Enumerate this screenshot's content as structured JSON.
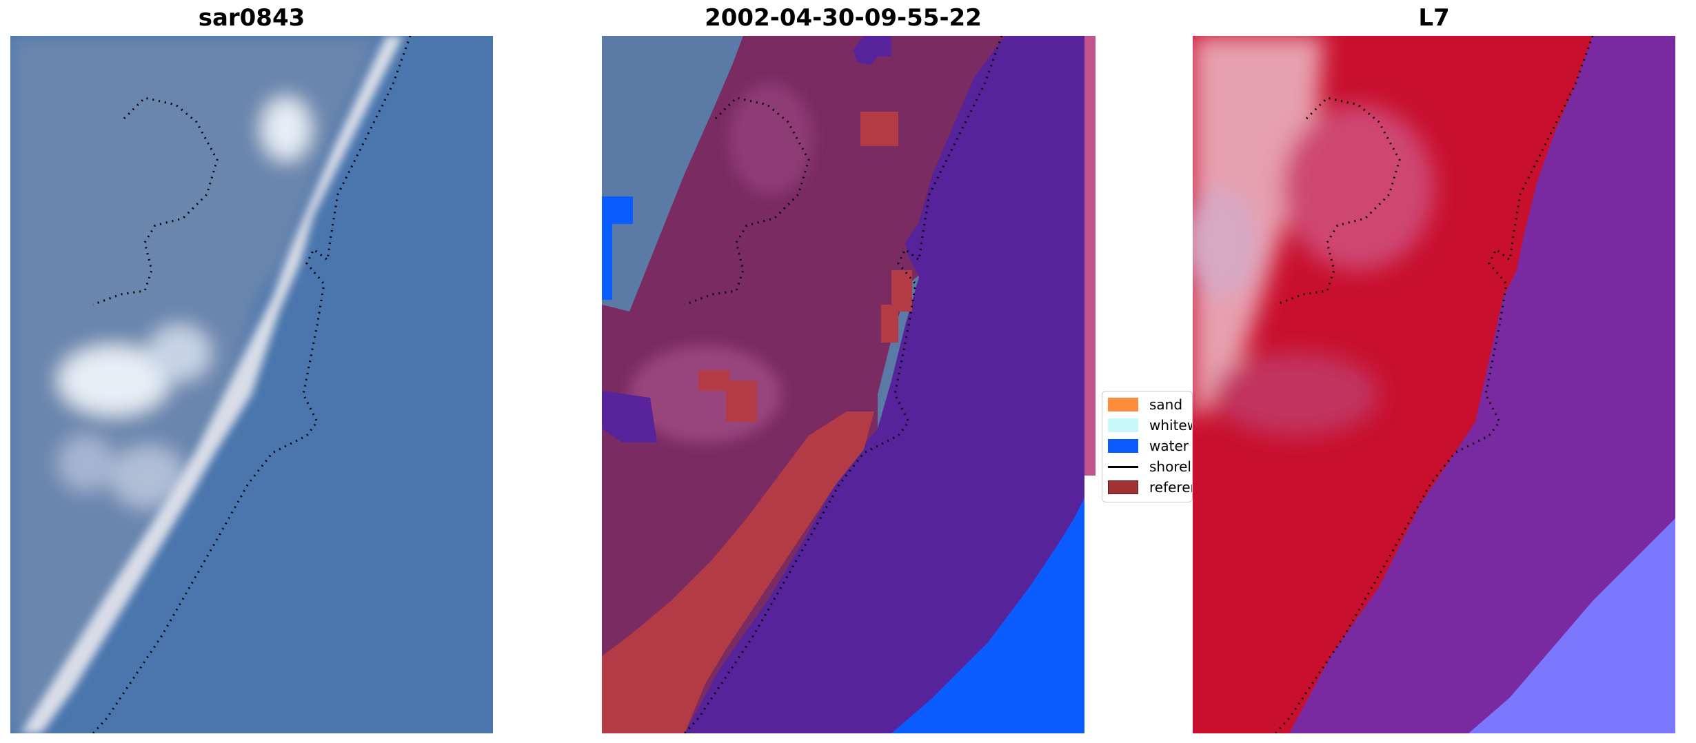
{
  "panels": [
    {
      "title": "sar0843",
      "kind": "rgb"
    },
    {
      "title": "2002-04-30-09-55-22",
      "kind": "classification"
    },
    {
      "title": "L7",
      "kind": "probability"
    }
  ],
  "legend": {
    "items": [
      {
        "label": "sand",
        "color": "#ff8c3c",
        "marker": "patch"
      },
      {
        "label": "whitewater",
        "color": "#c8f8f8",
        "marker": "patch"
      },
      {
        "label": "water",
        "color": "#0a5cff",
        "marker": "patch"
      },
      {
        "label": "shoreline",
        "color": "#000000",
        "marker": "line"
      },
      {
        "label": "reference shoreline buffer",
        "color": "#a03234",
        "marker": "patch"
      }
    ]
  },
  "colors": {
    "ocean": "#4a76ad",
    "land": "#6b86ad",
    "beach": "#d9dde8",
    "cloud": "#e6eef6",
    "class_water_overlay": "#56239b",
    "class_land_overlay": "#7a2b62",
    "class_buffer": "#b23b45",
    "class_water_blue": "#0a5cff",
    "prob_red": "#c8102e",
    "prob_purple": "#7a2aa0",
    "prob_light": "#7b78ff",
    "shoreline_dots": "#000000"
  }
}
